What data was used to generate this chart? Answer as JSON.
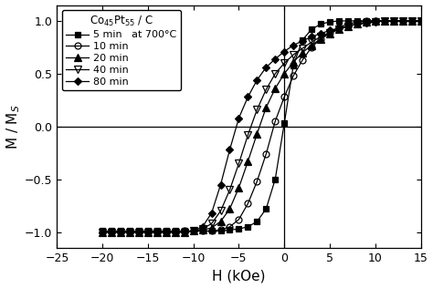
{
  "xlabel": "H (kOe)",
  "ylabel": "M / M$_S$",
  "xlim": [
    -25,
    15
  ],
  "ylim": [
    -1.15,
    1.15
  ],
  "xticks": [
    -25,
    -20,
    -15,
    -10,
    -5,
    0,
    5,
    10,
    15
  ],
  "yticks": [
    -1.0,
    -0.5,
    0.0,
    0.5,
    1.0
  ],
  "legend_title": "Co$_{45}$Pt$_{55}$ / C",
  "background_color": "#ffffff",
  "curves": [
    {
      "label": "5 min   at 700°C",
      "color": "#000000",
      "marker": "s",
      "fillstyle": "full",
      "H": [
        -20,
        -19,
        -18,
        -17,
        -16,
        -15,
        -14,
        -13,
        -12,
        -11,
        -10,
        -9,
        -8,
        -7,
        -6,
        -5,
        -4,
        -3,
        -2,
        -1,
        0,
        1,
        2,
        3,
        4,
        5,
        6,
        7,
        8,
        9,
        10,
        11,
        12,
        13,
        14,
        15
      ],
      "M": [
        -0.99,
        -0.99,
        -0.99,
        -0.99,
        -0.99,
        -0.99,
        -0.99,
        -0.99,
        -0.99,
        -0.99,
        -0.99,
        -0.99,
        -0.99,
        -0.99,
        -0.98,
        -0.97,
        -0.95,
        -0.9,
        -0.78,
        -0.5,
        0.03,
        0.58,
        0.82,
        0.92,
        0.97,
        0.99,
        1.0,
        1.0,
        1.0,
        1.0,
        1.0,
        1.0,
        1.0,
        1.0,
        1.0,
        1.0
      ]
    },
    {
      "label": "10 min",
      "color": "#000000",
      "marker": "o",
      "fillstyle": "none",
      "H": [
        -20,
        -19,
        -18,
        -17,
        -16,
        -15,
        -14,
        -13,
        -12,
        -11,
        -10,
        -9,
        -8,
        -7,
        -6,
        -5,
        -4,
        -3,
        -2,
        -1,
        0,
        1,
        2,
        3,
        4,
        5,
        6,
        7,
        8,
        9,
        10,
        11,
        12,
        13,
        14,
        15
      ],
      "M": [
        -1.0,
        -1.0,
        -1.0,
        -1.0,
        -1.0,
        -1.0,
        -1.0,
        -1.0,
        -1.0,
        -0.99,
        -0.99,
        -0.99,
        -0.99,
        -0.98,
        -0.95,
        -0.88,
        -0.73,
        -0.52,
        -0.26,
        0.05,
        0.28,
        0.48,
        0.63,
        0.75,
        0.83,
        0.89,
        0.94,
        0.97,
        0.99,
        1.0,
        1.0,
        1.0,
        1.0,
        1.0,
        1.0,
        1.0
      ]
    },
    {
      "label": "20 min",
      "color": "#000000",
      "marker": "^",
      "fillstyle": "full",
      "H": [
        -20,
        -19,
        -18,
        -17,
        -16,
        -15,
        -14,
        -13,
        -12,
        -11,
        -10,
        -9,
        -8,
        -7,
        -6,
        -5,
        -4,
        -3,
        -2,
        -1,
        0,
        1,
        2,
        3,
        4,
        5,
        6,
        7,
        8,
        9,
        10,
        11,
        12,
        13,
        14,
        15
      ],
      "M": [
        -1.0,
        -1.0,
        -1.0,
        -1.0,
        -1.0,
        -1.0,
        -1.0,
        -1.0,
        -1.0,
        -1.0,
        -0.99,
        -0.98,
        -0.96,
        -0.9,
        -0.78,
        -0.58,
        -0.33,
        -0.07,
        0.18,
        0.36,
        0.5,
        0.61,
        0.7,
        0.77,
        0.83,
        0.88,
        0.92,
        0.95,
        0.97,
        0.99,
        1.0,
        1.0,
        1.0,
        1.0,
        1.0,
        1.0
      ]
    },
    {
      "label": "40 min",
      "color": "#000000",
      "marker": "v",
      "fillstyle": "none",
      "H": [
        -20,
        -19,
        -18,
        -17,
        -16,
        -15,
        -14,
        -13,
        -12,
        -11,
        -10,
        -9,
        -8,
        -7,
        -6,
        -5,
        -4,
        -3,
        -2,
        -1,
        0,
        1,
        2,
        3,
        4,
        5,
        6,
        7,
        8,
        9,
        10,
        11,
        12,
        13,
        14,
        15
      ],
      "M": [
        -1.0,
        -1.0,
        -1.0,
        -1.0,
        -1.0,
        -1.0,
        -1.0,
        -1.0,
        -1.0,
        -1.0,
        -0.99,
        -0.97,
        -0.92,
        -0.8,
        -0.6,
        -0.35,
        -0.08,
        0.16,
        0.35,
        0.5,
        0.6,
        0.68,
        0.74,
        0.8,
        0.85,
        0.89,
        0.92,
        0.95,
        0.97,
        0.98,
        0.99,
        1.0,
        1.0,
        1.0,
        1.0,
        1.0
      ]
    },
    {
      "label": "80 min",
      "color": "#000000",
      "marker": "D",
      "fillstyle": "full",
      "H": [
        -20,
        -19,
        -18,
        -17,
        -16,
        -15,
        -14,
        -13,
        -12,
        -11,
        -10,
        -9,
        -8,
        -7,
        -6,
        -5,
        -4,
        -3,
        -2,
        -1,
        0,
        1,
        2,
        3,
        4,
        5,
        6,
        7,
        8,
        9,
        10,
        11,
        12,
        13,
        14,
        15
      ],
      "M": [
        -1.0,
        -1.0,
        -1.0,
        -1.0,
        -1.0,
        -1.0,
        -1.0,
        -1.0,
        -1.0,
        -1.0,
        -0.99,
        -0.95,
        -0.82,
        -0.55,
        -0.22,
        0.08,
        0.28,
        0.44,
        0.56,
        0.64,
        0.71,
        0.77,
        0.81,
        0.85,
        0.88,
        0.91,
        0.93,
        0.95,
        0.97,
        0.98,
        0.99,
        1.0,
        1.0,
        1.0,
        1.0,
        1.0
      ]
    }
  ]
}
